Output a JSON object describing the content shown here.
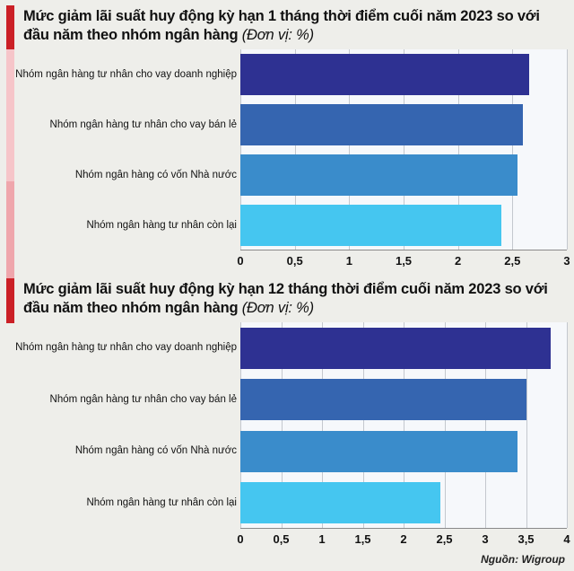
{
  "page": {
    "background": "#eeeeea",
    "accent_red": "#cb2026",
    "strip_pink_light": "#f6c5c9",
    "strip_pink_dark": "#efa6ac",
    "source": "Nguồn: Wigroup"
  },
  "chart_data": [
    {
      "type": "bar",
      "orientation": "horizontal",
      "title": "Mức giảm lãi suất huy động kỳ hạn 1 tháng thời điểm cuối năm 2023 so với đầu năm theo nhóm ngân hàng",
      "unit_label": "(Đơn vị: %)",
      "categories": [
        "Nhóm ngân hàng tư nhân cho vay doanh nghiệp",
        "Nhóm ngân hàng tư nhân cho vay bán lẻ",
        "Nhóm ngân hàng có vốn Nhà nước",
        "Nhóm ngân hàng tư nhân còn lại"
      ],
      "values": [
        2.65,
        2.6,
        2.55,
        2.4
      ],
      "bar_colors": [
        "#2e3192",
        "#3565b0",
        "#3a8ccb",
        "#45c6f0"
      ],
      "xlim": [
        0,
        3
      ],
      "grid": true,
      "legend": null,
      "ticks": [
        {
          "value": 0,
          "label": "0"
        },
        {
          "value": 0.5,
          "label": "0,5"
        },
        {
          "value": 1,
          "label": "1"
        },
        {
          "value": 1.5,
          "label": "1,5"
        },
        {
          "value": 2,
          "label": "2"
        },
        {
          "value": 2.5,
          "label": "2,5"
        },
        {
          "value": 3,
          "label": "3"
        }
      ]
    },
    {
      "type": "bar",
      "orientation": "horizontal",
      "title": "Mức giảm lãi suất huy động kỳ hạn 12 tháng thời điểm cuối năm 2023 so với đầu năm theo nhóm ngân hàng",
      "unit_label": "(Đơn vị: %)",
      "categories": [
        "Nhóm ngân hàng tư nhân cho vay doanh nghiệp",
        "Nhóm ngân hàng tư nhân cho vay bán lẻ",
        "Nhóm ngân hàng có vốn Nhà nước",
        "Nhóm ngân hàng tư nhân còn lại"
      ],
      "values": [
        3.8,
        3.5,
        3.4,
        2.45
      ],
      "bar_colors": [
        "#2e3192",
        "#3565b0",
        "#3a8ccb",
        "#45c6f0"
      ],
      "xlim": [
        0,
        4
      ],
      "grid": true,
      "legend": null,
      "ticks": [
        {
          "value": 0,
          "label": "0"
        },
        {
          "value": 0.5,
          "label": "0,5"
        },
        {
          "value": 1,
          "label": "1"
        },
        {
          "value": 1.5,
          "label": "1,5"
        },
        {
          "value": 2,
          "label": "2"
        },
        {
          "value": 2.5,
          "label": "2,5"
        },
        {
          "value": 3,
          "label": "3"
        },
        {
          "value": 3.5,
          "label": "3,5"
        },
        {
          "value": 4,
          "label": "4"
        }
      ]
    }
  ]
}
